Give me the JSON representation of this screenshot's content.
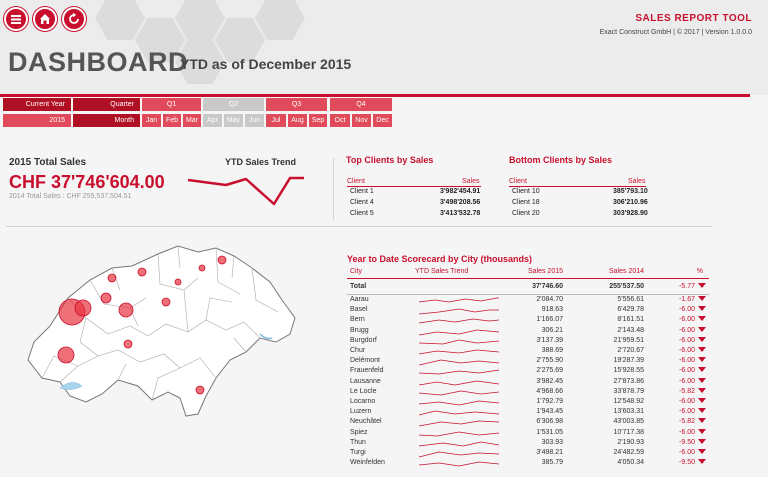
{
  "header": {
    "app_title": "SALES REPORT TOOL",
    "copyright": "Exact Construct GmbH | © 2017 | Version 1.0.0.0",
    "title": "DASHBOARD",
    "subtitle": "YTD as of December 2015",
    "buttons": [
      "menu-icon",
      "home-icon",
      "refresh-icon"
    ]
  },
  "slicers": {
    "current_year_label": "Current Year",
    "year_value": "2015",
    "quarter_label": "Quarter",
    "month_label": "Month",
    "quarters": [
      "Q1",
      "Q2",
      "Q3",
      "Q4"
    ],
    "months": [
      "Jan",
      "Feb",
      "Mar",
      "Apr",
      "May",
      "Jun",
      "Jul",
      "Aug",
      "Sep",
      "Oct",
      "Nov",
      "Dec"
    ]
  },
  "totals": {
    "title": "2015 Total Sales",
    "value": "CHF 37'746'604.00",
    "sub": "2014 Total Sales : CHF 255,537,504.51",
    "trend_title": "YTD Sales Trend"
  },
  "top_clients": {
    "title": "Top Clients by Sales",
    "col_client": "Client",
    "col_sales": "Sales",
    "rows": [
      {
        "client": "Client 1",
        "sales": "3'982'454.91"
      },
      {
        "client": "Client 4",
        "sales": "3'498'208.56"
      },
      {
        "client": "Client 5",
        "sales": "3'413'532.78"
      }
    ]
  },
  "bottom_clients": {
    "title": "Bottom Clients by Sales",
    "col_client": "Client",
    "col_sales": "Sales",
    "rows": [
      {
        "client": "Client 10",
        "sales": "385'793.10"
      },
      {
        "client": "Client 18",
        "sales": "306'210.96"
      },
      {
        "client": "Client 20",
        "sales": "303'928.90"
      }
    ]
  },
  "scorecard": {
    "title": "Year to Date Scorecard by City (thousands)",
    "col_city": "City",
    "col_trend": "YTD Sales Trend",
    "col_s15": "Sales  2015",
    "col_s14": "Sales  2014",
    "col_pct": "%",
    "total": {
      "city": "Total",
      "s15": "37'746.60",
      "s14": "255'537.50",
      "pct": "-5.77"
    },
    "rows": [
      {
        "city": "Aarau",
        "s15": "2'084.70",
        "s14": "5'556.61",
        "pct": "-1.67"
      },
      {
        "city": "Basel",
        "s15": "918.63",
        "s14": "6'429.78",
        "pct": "-6.00"
      },
      {
        "city": "Bern",
        "s15": "1'166.07",
        "s14": "8'161.51",
        "pct": "-6.00"
      },
      {
        "city": "Brugg",
        "s15": "306.21",
        "s14": "2'143.48",
        "pct": "-6.00"
      },
      {
        "city": "Burgdorf",
        "s15": "3'137.39",
        "s14": "21'959.51",
        "pct": "-6.00"
      },
      {
        "city": "Chur",
        "s15": "388.69",
        "s14": "2'720.67",
        "pct": "-6.00"
      },
      {
        "city": "Delémont",
        "s15": "2'755.90",
        "s14": "19'287.39",
        "pct": "-6.00"
      },
      {
        "city": "Frauenfeld",
        "s15": "2'275.69",
        "s14": "15'928.55",
        "pct": "-6.00"
      },
      {
        "city": "Lausanne",
        "s15": "3'982.45",
        "s14": "27'873.86",
        "pct": "-6.00"
      },
      {
        "city": "Le Locle",
        "s15": "4'968.66",
        "s14": "33'878.79",
        "pct": "-5.82"
      },
      {
        "city": "Locarno",
        "s15": "1'792.79",
        "s14": "12'548.92",
        "pct": "-6.00"
      },
      {
        "city": "Luzern",
        "s15": "1'943.45",
        "s14": "13'603.31",
        "pct": "-6.00"
      },
      {
        "city": "Neuchâtel",
        "s15": "6'306.98",
        "s14": "43'003.85",
        "pct": "-5.82"
      },
      {
        "city": "Spiez",
        "s15": "1'531.05",
        "s14": "10'717.38",
        "pct": "-6.00"
      },
      {
        "city": "Thun",
        "s15": "303.93",
        "s14": "2'190.93",
        "pct": "-9.50"
      },
      {
        "city": "Turgi",
        "s15": "3'498.21",
        "s14": "24'482.59",
        "pct": "-6.00"
      },
      {
        "city": "Weinfelden",
        "s15": "385.79",
        "s14": "4'050.34",
        "pct": "-9.50"
      }
    ]
  },
  "colors": {
    "accent": "#c8102e",
    "slicer_dark": "#b01024",
    "slicer_mid": "#e04a5a",
    "slicer_off": "#c9c9c9"
  }
}
